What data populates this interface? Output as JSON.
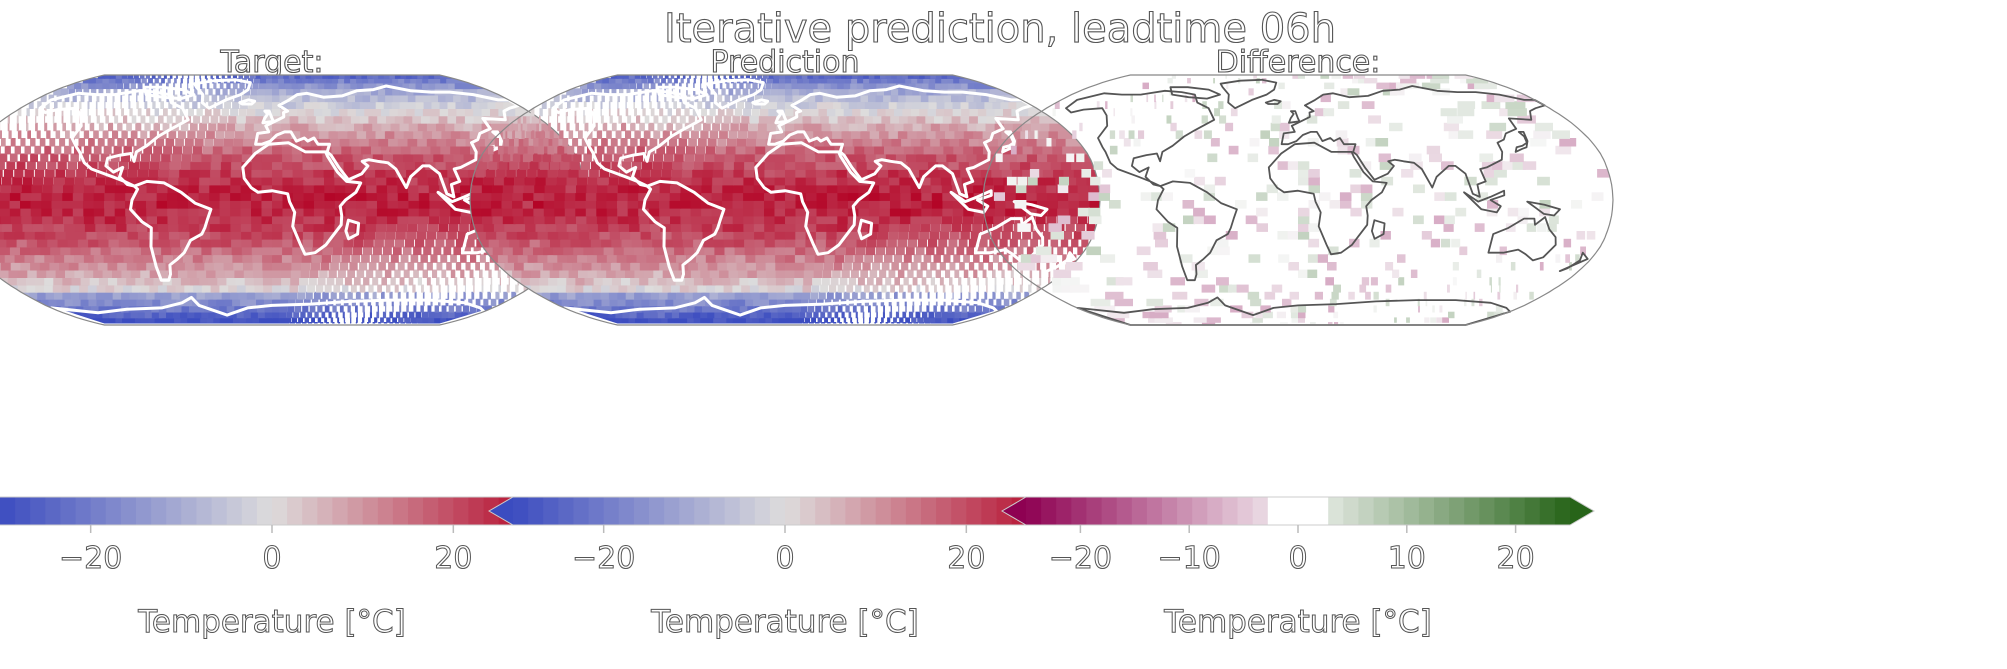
{
  "figure": {
    "suptitle": "Iterative prediction, leadtime 06h"
  },
  "chart_data": [
    {
      "type": "heatmap",
      "title": "Target:",
      "projection": "Robinson",
      "field": "temperature",
      "colormap": "coolwarm",
      "colorbar": {
        "label": "Temperature [°C]",
        "range": [
          -30,
          30
        ],
        "extend": "both",
        "ticks": [
          -20,
          0,
          20
        ],
        "tick_labels": [
          "−20",
          "0",
          "20"
        ]
      }
    },
    {
      "type": "heatmap",
      "title": "Prediction",
      "projection": "Robinson",
      "field": "temperature",
      "colormap": "coolwarm",
      "colorbar": {
        "label": "Temperature [°C]",
        "range": [
          -30,
          30
        ],
        "extend": "both",
        "ticks": [
          -20,
          0,
          20
        ],
        "tick_labels": [
          "−20",
          "0",
          "20"
        ]
      }
    },
    {
      "type": "heatmap",
      "title": "Difference:",
      "projection": "Robinson",
      "field": "temperature difference",
      "colormap": "PiYG",
      "colorbar": {
        "label": "Temperature [°C]",
        "range": [
          -25,
          25
        ],
        "extend": "both",
        "ticks": [
          -20,
          -10,
          0,
          10,
          20
        ],
        "tick_labels": [
          "−20",
          "−10",
          "0",
          "10",
          "20"
        ]
      }
    }
  ],
  "colors": {
    "coolwarm_low": "#3b4cc0",
    "coolwarm_mid": "#dddcdc",
    "coolwarm_high": "#b40426",
    "piyg_low": "#8e0152",
    "piyg_mid": "#f7f7f7",
    "piyg_high": "#276419"
  }
}
